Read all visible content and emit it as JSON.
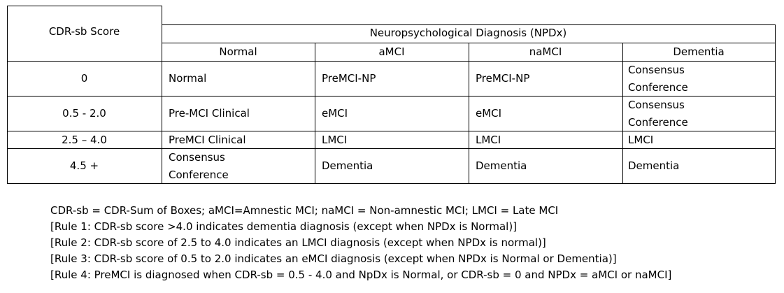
{
  "table": {
    "row_header_title": "CDR-sb Score",
    "group_header": "Neuropsychological Diagnosis (NPDx)",
    "columns": [
      "Normal",
      "aMCI",
      "naMCI",
      "Dementia"
    ],
    "rows": [
      {
        "score": "0",
        "cells": [
          [
            "Normal"
          ],
          [
            "PreMCI-NP"
          ],
          [
            "PreMCI-NP"
          ],
          [
            "Consensus",
            "Conference"
          ]
        ]
      },
      {
        "score": "0.5 - 2.0",
        "cells": [
          [
            "Pre-MCI Clinical"
          ],
          [
            "eMCI"
          ],
          [
            "eMCI"
          ],
          [
            "Consensus",
            "Conference"
          ]
        ]
      },
      {
        "score": "2.5 – 4.0",
        "cells": [
          [
            "PreMCI Clinical"
          ],
          [
            "LMCI"
          ],
          [
            "LMCI"
          ],
          [
            "LMCI"
          ]
        ]
      },
      {
        "score": "4.5 +",
        "cells": [
          [
            "Consensus",
            "Conference"
          ],
          [
            "Dementia"
          ],
          [
            "Dementia"
          ],
          [
            "Dementia"
          ]
        ]
      }
    ]
  },
  "notes": [
    "CDR-sb = CDR-Sum of Boxes; aMCI=Amnestic MCI; naMCI = Non-amnestic MCI; LMCI = Late MCI",
    "[Rule 1: CDR-sb score >4.0 indicates dementia diagnosis (except when NPDx is Normal)]",
    "[Rule 2: CDR-sb score of 2.5 to 4.0 indicates an LMCI diagnosis (except when NPDx is normal)]",
    "[Rule 3: CDR-sb score of 0.5 to 2.0 indicates an eMCI diagnosis (except when NPDx is Normal or Dementia)]",
    "[Rule 4: PreMCI is diagnosed when CDR-sb = 0.5 - 4.0 and NpDx is Normal, or CDR-sb = 0 and NPDx = aMCI or naMCI]"
  ]
}
